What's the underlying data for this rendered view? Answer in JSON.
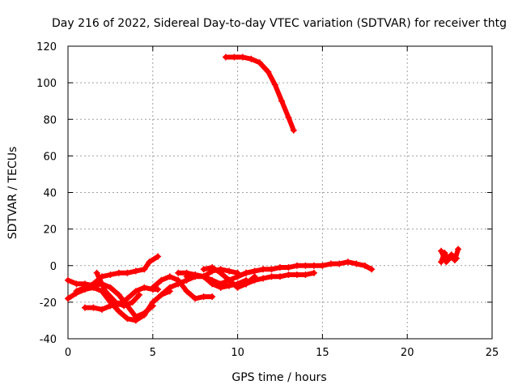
{
  "chart_data": {
    "type": "scatter",
    "title": "Day 216 of 2022, Sidereal Day-to-day VTEC variation (SDTVAR) for receiver thtg",
    "xlabel": "GPS time / hours",
    "ylabel": "SDTVAR / TECUs",
    "xlim": [
      0,
      25
    ],
    "ylim": [
      -40,
      120
    ],
    "xticks": [
      "0",
      "5",
      "10",
      "15",
      "20",
      "25"
    ],
    "yticks": [
      "-40",
      "-20",
      "0",
      "20",
      "40",
      "60",
      "80",
      "100",
      "120"
    ],
    "grid": true,
    "marker": "+",
    "color": "#ff0000",
    "series": [
      {
        "name": "arc-1",
        "x": [
          0.0,
          0.5,
          1.0,
          1.5,
          2.0,
          2.5,
          3.0,
          3.5,
          4.0,
          4.5,
          5.0
        ],
        "y": [
          -8,
          -10,
          -10,
          -11,
          -10,
          -12,
          -16,
          -22,
          -28,
          -26,
          -22
        ]
      },
      {
        "name": "arc-2",
        "x": [
          0.0,
          0.5,
          1.0,
          1.5,
          2.0,
          2.5,
          3.0,
          3.5,
          4.0,
          4.5,
          5.0,
          5.5,
          6.0
        ],
        "y": [
          -18,
          -15,
          -13,
          -12,
          -14,
          -20,
          -25,
          -29,
          -30,
          -27,
          -20,
          -16,
          -14
        ]
      },
      {
        "name": "arc-3",
        "x": [
          1.0,
          1.5,
          2.0,
          2.5,
          3.0,
          3.5,
          4.0,
          4.5,
          5.0,
          5.3
        ],
        "y": [
          -23,
          -23,
          -24,
          -22,
          -21,
          -18,
          -14,
          -12,
          -13,
          -13
        ]
      },
      {
        "name": "arc-4",
        "x": [
          0.5,
          1.0,
          1.5,
          2.0,
          2.5,
          3.0,
          3.5,
          4.0,
          4.5,
          4.8,
          5.3
        ],
        "y": [
          -14,
          -12,
          -10,
          -6,
          -5,
          -4,
          -4,
          -3,
          -2,
          2,
          5
        ]
      },
      {
        "name": "arc-5",
        "x": [
          1.7,
          2.2,
          2.8,
          3.3,
          3.8,
          4.2
        ],
        "y": [
          -4,
          -14,
          -20,
          -22,
          -20,
          -16
        ]
      },
      {
        "name": "arc-6",
        "x": [
          5.0,
          5.5,
          6.0,
          6.5,
          7.0,
          7.5,
          8.0,
          8.5
        ],
        "y": [
          -12,
          -8,
          -6,
          -8,
          -14,
          -18,
          -17,
          -17
        ]
      },
      {
        "name": "arc-7",
        "x": [
          5.5,
          6.0,
          6.5,
          7.0,
          7.5,
          8.0,
          8.5,
          9.0,
          9.5,
          10.0,
          10.5,
          11.0
        ],
        "y": [
          -16,
          -12,
          -10,
          -8,
          -6,
          -6,
          -8,
          -10,
          -8,
          -6,
          -4,
          -3
        ]
      },
      {
        "name": "arc-8",
        "x": [
          6.5,
          7.0,
          7.5,
          8.0,
          8.5,
          9.0,
          9.5,
          10.0
        ],
        "y": [
          -4,
          -4,
          -5,
          -6,
          -3,
          -2,
          -3,
          -4
        ]
      },
      {
        "name": "arc-9",
        "x": [
          7.0,
          7.5,
          8.0,
          8.5,
          9.0,
          9.5,
          10.0,
          10.5
        ],
        "y": [
          -6,
          -5,
          -6,
          -10,
          -12,
          -11,
          -10,
          -8
        ]
      },
      {
        "name": "arc-10",
        "x": [
          8.0,
          8.5,
          9.0,
          9.5,
          10.0,
          10.5,
          11.0
        ],
        "y": [
          -2,
          -1,
          -4,
          -8,
          -12,
          -10,
          -6
        ]
      },
      {
        "name": "arc-11",
        "x": [
          10.0,
          10.5,
          11.0,
          11.5,
          12.0,
          12.5,
          13.0,
          13.5,
          14.0,
          14.5,
          15.0,
          15.5,
          16.0,
          16.5,
          17.0,
          17.5,
          17.9
        ],
        "y": [
          -6,
          -4,
          -3,
          -2,
          -2,
          -1,
          -1,
          0,
          0,
          0,
          0,
          1,
          1,
          2,
          1,
          0,
          -2
        ]
      },
      {
        "name": "arc-12",
        "x": [
          10.5,
          11.0,
          11.5,
          12.0,
          12.5,
          13.0,
          13.5,
          14.0,
          14.5
        ],
        "y": [
          -10,
          -8,
          -7,
          -6,
          -6,
          -5,
          -5,
          -5,
          -4
        ]
      },
      {
        "name": "arc-13",
        "x": [
          9.3,
          9.8,
          10.3,
          10.8,
          11.3,
          11.8,
          12.2,
          12.6,
          13.0,
          13.3
        ],
        "y": [
          114,
          114,
          114,
          113,
          111,
          106,
          99,
          90,
          81,
          74
        ]
      },
      {
        "name": "arc-14",
        "x": [
          22.0,
          22.2,
          22.4,
          22.6,
          22.8,
          23.0
        ],
        "y": [
          2,
          7,
          3,
          5,
          3,
          9
        ]
      },
      {
        "name": "arc-15",
        "x": [
          22.0,
          22.3,
          22.6,
          22.9
        ],
        "y": [
          8,
          2,
          6,
          4
        ]
      }
    ]
  }
}
